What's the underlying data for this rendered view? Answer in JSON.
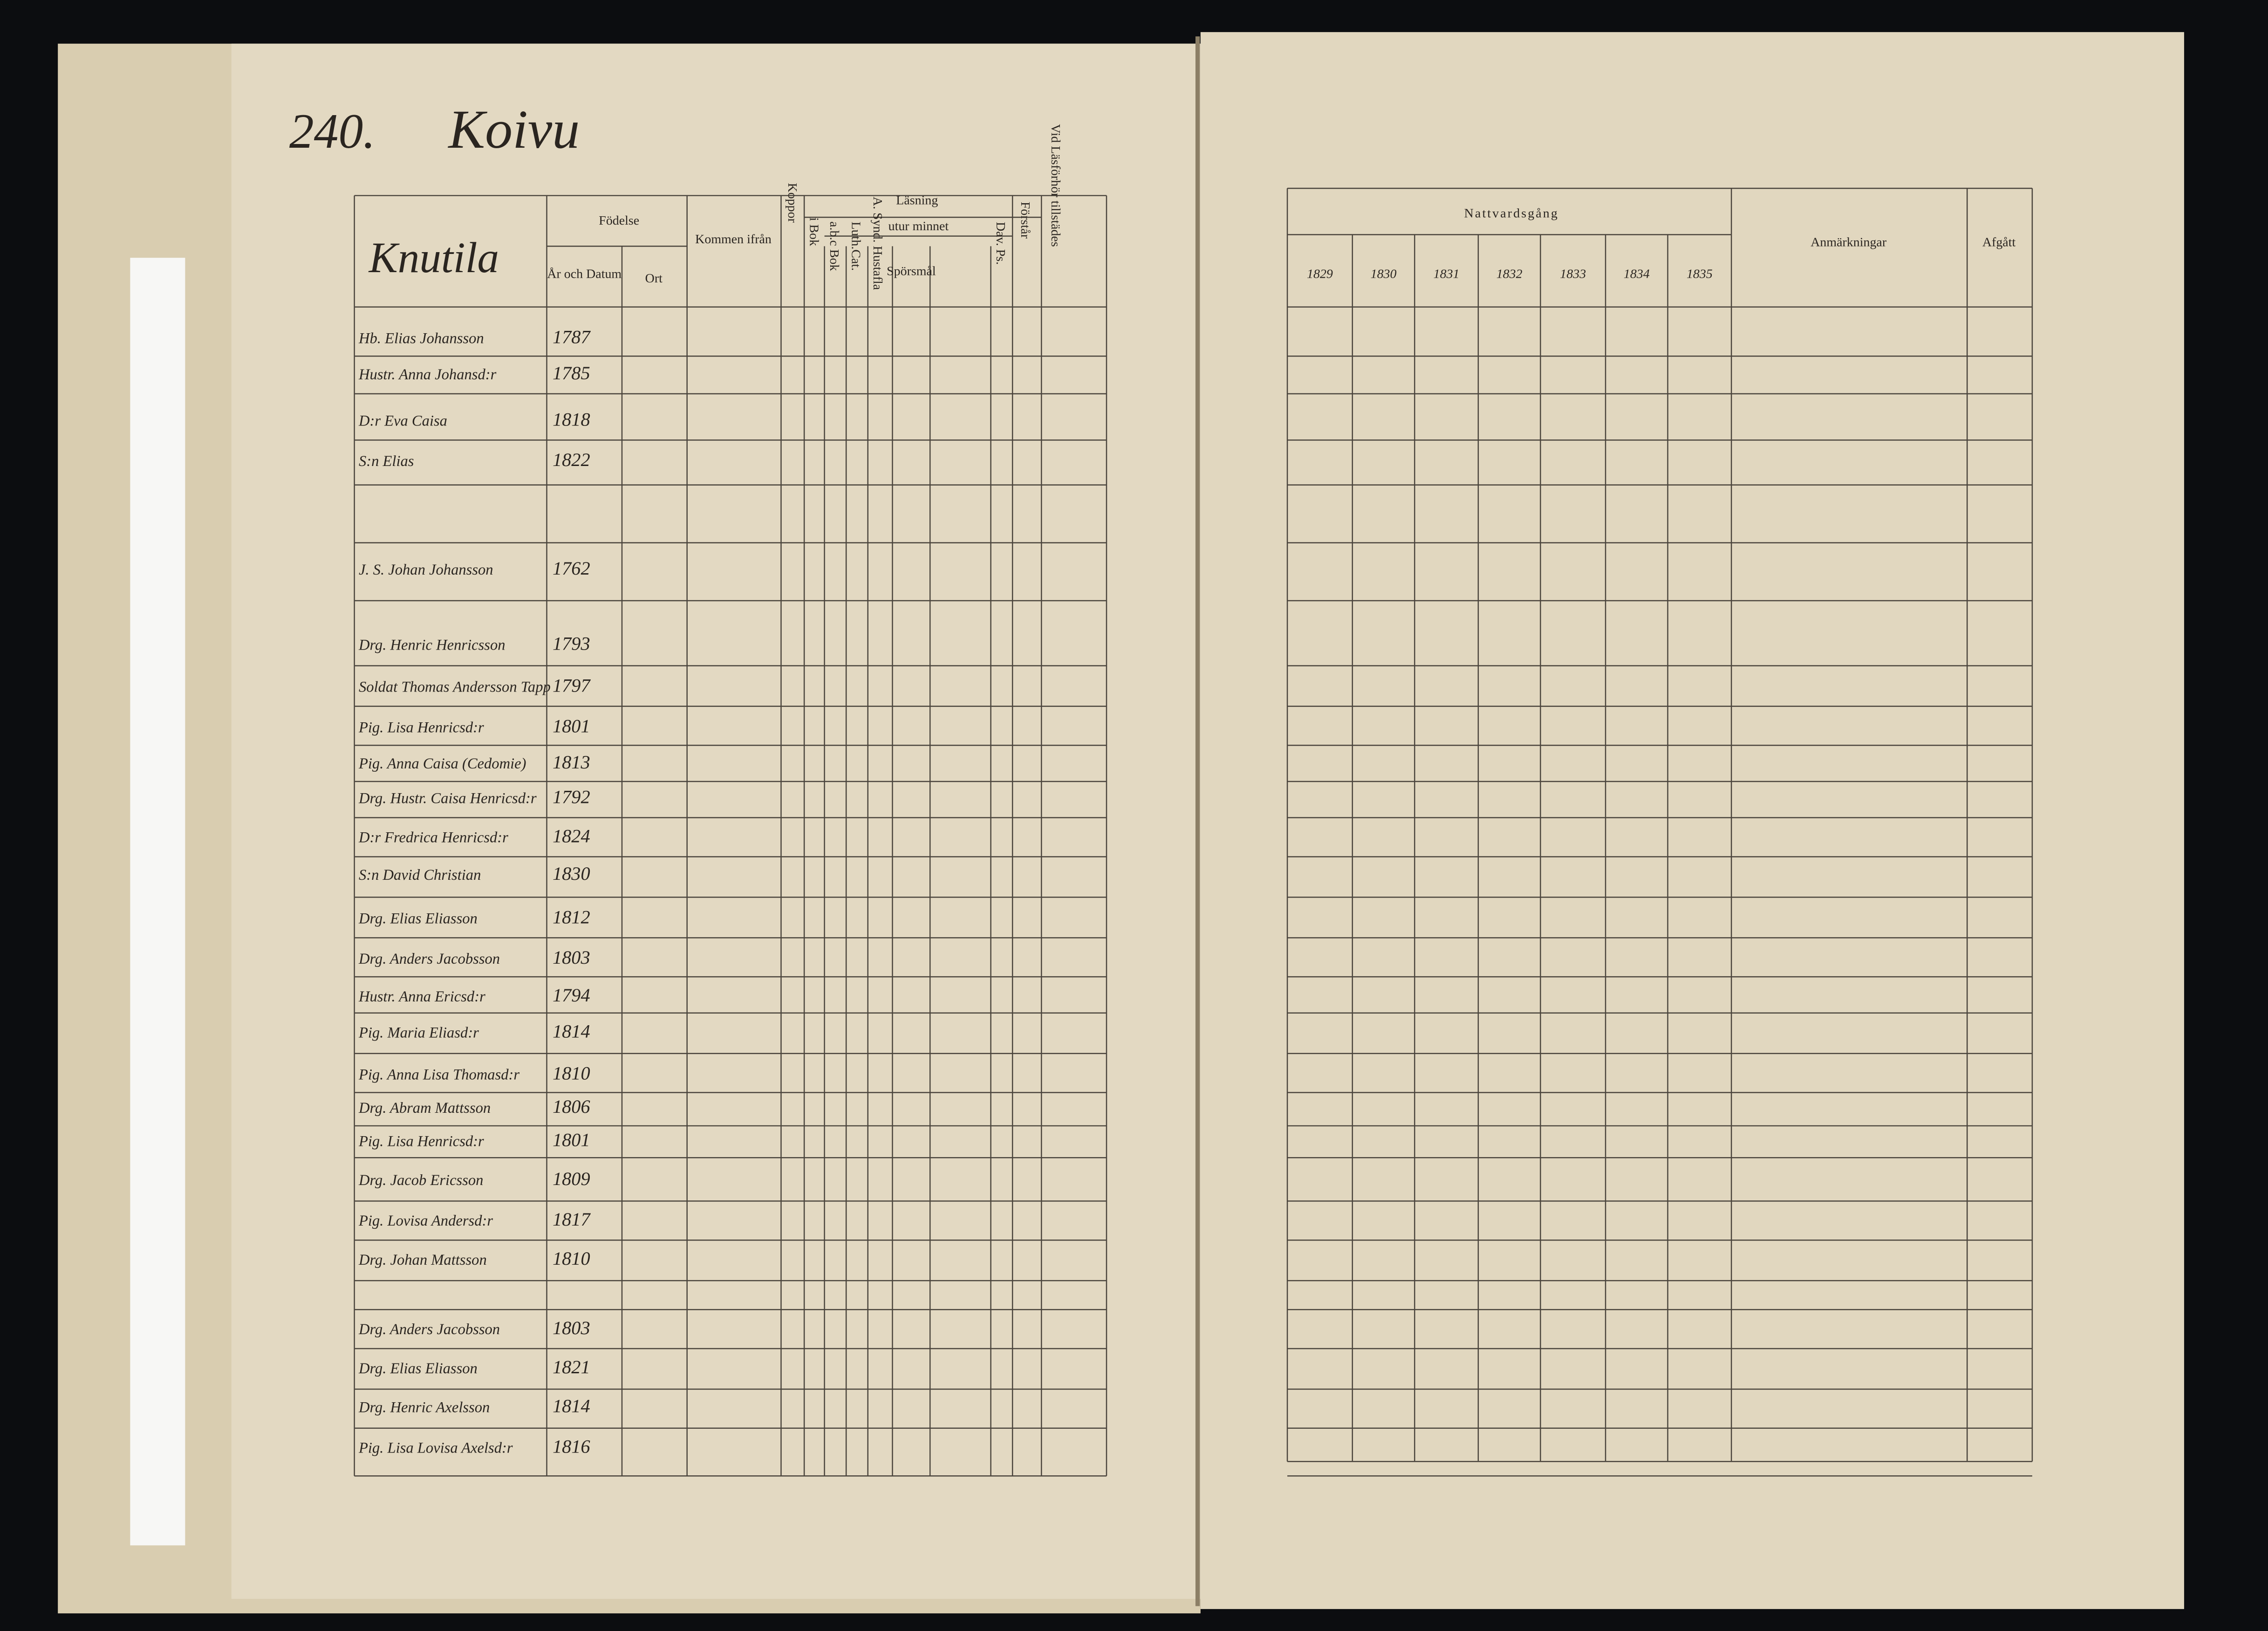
{
  "page_number": "240.",
  "village": "Koivu",
  "farm": "Knutila",
  "left_headers": {
    "birth": "Födelse",
    "birth_date": "År och Datum",
    "birth_place": "Ort",
    "came_from": "Kommen ifrån",
    "smallpox": "Koppor",
    "reading": "Läsning",
    "from_book": "i Bok",
    "by_heart": "utur minnet",
    "abc": "a.b.c Bok",
    "luth_cat": "Luth.Cat.",
    "tables": "A. Synd. Hustafla",
    "questions": "Spörsmål",
    "dav": "Dav. Ps.",
    "understands": "Förstår",
    "present": "Vid Läsförhör tillstädes"
  },
  "right_headers": {
    "communion": "Nattvardsgång",
    "years": [
      "1829",
      "1830",
      "1831",
      "1832",
      "1833",
      "1834",
      "1835"
    ],
    "remarks": "Anmärkningar",
    "departed": "Afgått"
  },
  "rows": [
    {
      "name": "Hb. Elias Johansson",
      "born": "1787"
    },
    {
      "name": "Hustr. Anna Johansd:r",
      "born": "1785"
    },
    {
      "name": "D:r Eva Caisa",
      "born": "1818"
    },
    {
      "name": "S:n Elias",
      "born": "1822"
    },
    {
      "name": "J. S. Johan Johansson",
      "born": "1762"
    },
    {
      "name": "Drg. Henric Henricsson",
      "born": "1793"
    },
    {
      "name": "Soldat Thomas Andersson Tapp",
      "born": "1797"
    },
    {
      "name": "Pig. Lisa Henricsd:r",
      "born": "1801"
    },
    {
      "name": "Pig. Anna Caisa (Cedomie)",
      "born": "1813"
    },
    {
      "name": "Drg. Hustr. Caisa Henricsd:r",
      "born": "1792"
    },
    {
      "name": "D:r Fredrica Henricsd:r",
      "born": "1824"
    },
    {
      "name": "S:n David Christian",
      "born": "1830"
    },
    {
      "name": "Drg. Elias Eliasson",
      "born": "1812"
    },
    {
      "name": "Drg. Anders Jacobsson",
      "born": "1803"
    },
    {
      "name": "Hustr. Anna Ericsd:r",
      "born": "1794"
    },
    {
      "name": "Pig. Maria Eliasd:r",
      "born": "1814"
    },
    {
      "name": "Pig. Anna Lisa Thomasd:r",
      "born": "1810"
    },
    {
      "name": "Drg. Abram Mattsson",
      "born": "1806"
    },
    {
      "name": "Pig. Lisa Henricsd:r",
      "born": "1801"
    },
    {
      "name": "Drg. Jacob Ericsson",
      "born": "1809"
    },
    {
      "name": "Pig. Lovisa Andersd:r",
      "born": "1817"
    },
    {
      "name": "Drg. Johan Mattsson",
      "born": "1810"
    },
    {
      "name": "Drg. Anders Jacobsson",
      "born": "1803"
    },
    {
      "name": "Drg. Elias Eliasson",
      "born": "1821"
    },
    {
      "name": "Drg. Henric Axelsson",
      "born": "1814"
    },
    {
      "name": "Pig. Lisa Lovisa Axelsd:r",
      "born": "1816"
    }
  ]
}
